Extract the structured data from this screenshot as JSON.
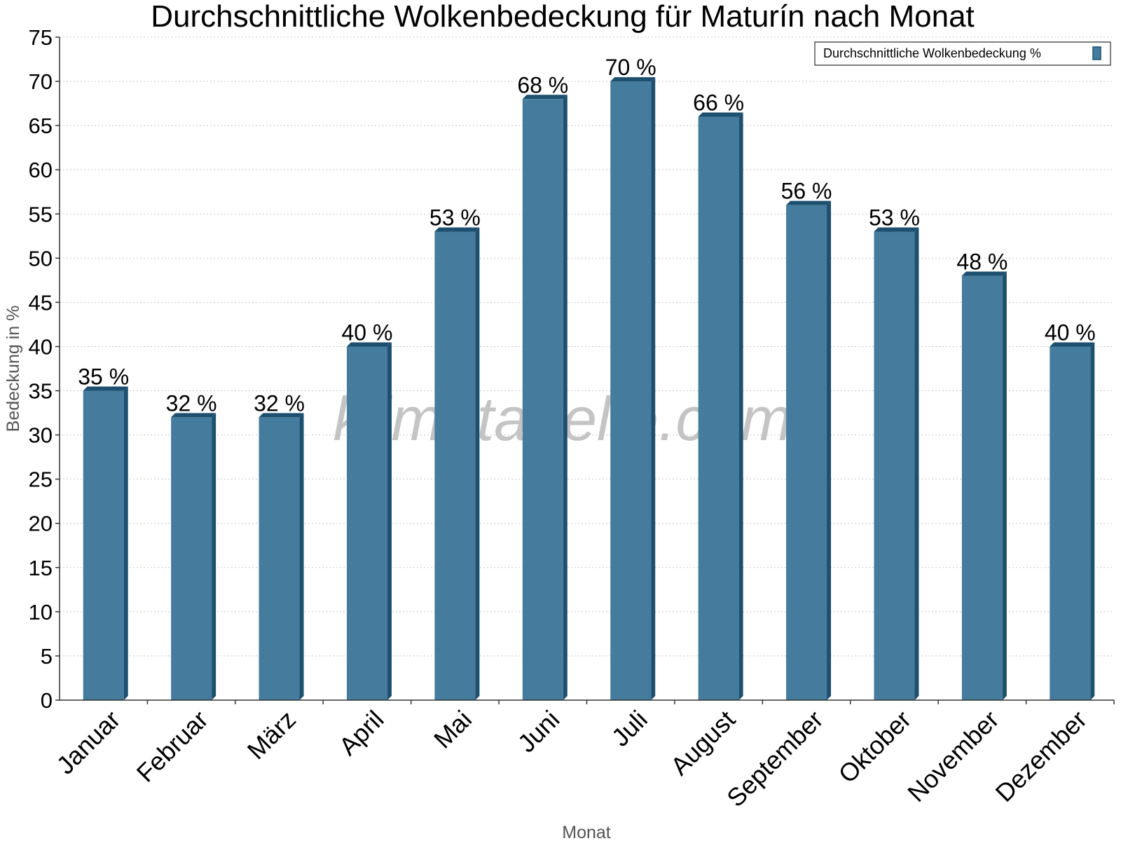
{
  "chart_data": {
    "type": "bar",
    "title": "Durchschnittliche Wolkenbedeckung für Maturín nach Monat",
    "xlabel": "Monat",
    "ylabel": "Bedeckung in %",
    "categories": [
      "Januar",
      "Februar",
      "März",
      "April",
      "Mai",
      "Juni",
      "Juli",
      "August",
      "September",
      "Oktober",
      "November",
      "Dezember"
    ],
    "series": [
      {
        "name": "Durchschnittliche Wolkenbedeckung %",
        "values": [
          35,
          32,
          32,
          40,
          53,
          68,
          70,
          66,
          56,
          53,
          48,
          40
        ],
        "labels": [
          "35 %",
          "32 %",
          "32 %",
          "40 %",
          "53 %",
          "68 %",
          "70 %",
          "66 %",
          "56 %",
          "53 %",
          "48 %",
          "40 %"
        ],
        "color": "#457b9d",
        "edge_color": "#1d4f6e"
      }
    ],
    "ylim": [
      0,
      75
    ],
    "yticks": [
      0,
      5,
      10,
      15,
      20,
      25,
      30,
      35,
      40,
      45,
      50,
      55,
      60,
      65,
      70,
      75
    ],
    "grid": true,
    "legend_position": "top-right",
    "watermark": "klimatabelle.com"
  }
}
